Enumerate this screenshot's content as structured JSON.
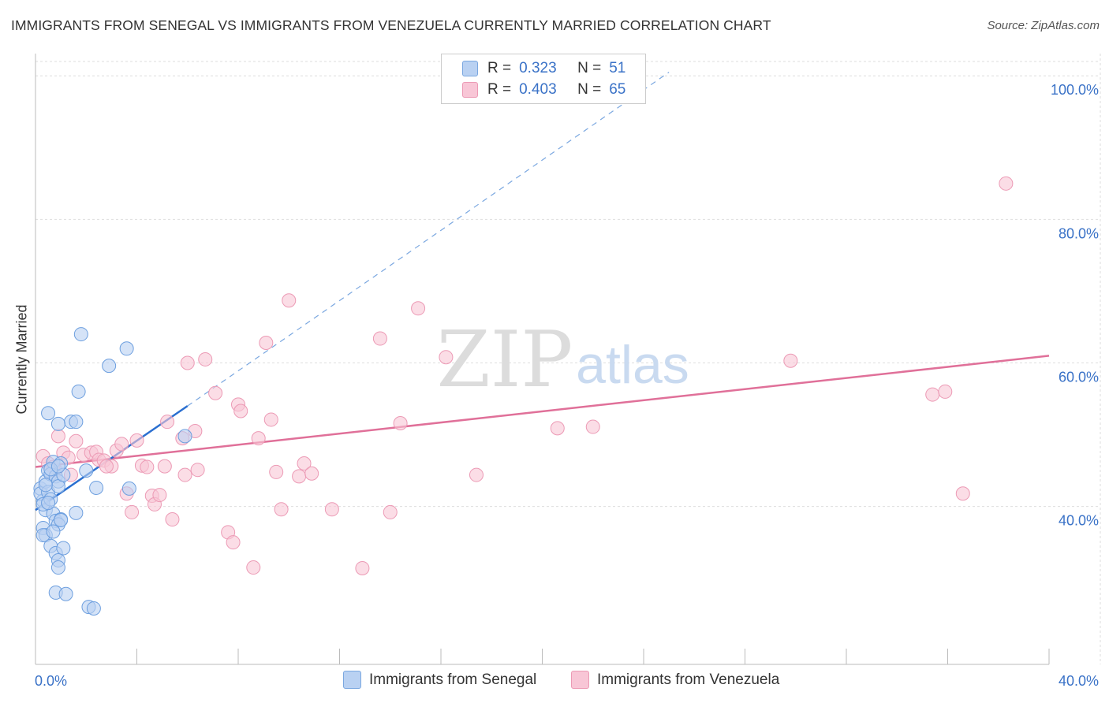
{
  "header": {
    "title": "IMMIGRANTS FROM SENEGAL VS IMMIGRANTS FROM VENEZUELA CURRENTLY MARRIED CORRELATION CHART",
    "source": "Source: ZipAtlas.com"
  },
  "legend": {
    "r_label": "R =",
    "n_label": "N =",
    "senegal": {
      "r": "0.323",
      "n": "51"
    },
    "venezuela": {
      "r": "0.403",
      "n": "65"
    }
  },
  "bottom_legend": {
    "senegal": "Immigrants from Senegal",
    "venezuela": "Immigrants from Venezuela"
  },
  "watermark": {
    "zip": "ZIP",
    "atlas": "atlas"
  },
  "colors": {
    "senegal_fill": "#b9d1f2",
    "senegal_stroke": "#6d9fdf",
    "senegal_line": "#2a6fd0",
    "venezuela_fill": "#f8c6d6",
    "venezuela_stroke": "#ec9ab5",
    "venezuela_line": "#e07099",
    "tick_label": "#3a72c7"
  },
  "chart_data": {
    "type": "scatter",
    "title": "IMMIGRANTS FROM SENEGAL VS IMMIGRANTS FROM VENEZUELA CURRENTLY MARRIED CORRELATION CHART",
    "xlabel": "",
    "ylabel": "Currently Married",
    "xlim": [
      0,
      40
    ],
    "ylim": [
      18,
      102
    ],
    "x_tick_labels": [
      "0.0%",
      "40.0%"
    ],
    "y_ticks": [
      {
        "value": 40,
        "label": "40.0%"
      },
      {
        "value": 60,
        "label": "60.0%"
      },
      {
        "value": 80,
        "label": "80.0%"
      },
      {
        "value": 100,
        "label": "100.0%"
      }
    ],
    "series": [
      {
        "name": "Immigrants from Senegal",
        "r": 0.323,
        "n": 51,
        "points": [
          [
            0.2,
            42.5
          ],
          [
            0.3,
            40.8
          ],
          [
            0.4,
            43.5
          ],
          [
            0.2,
            41.8
          ],
          [
            0.5,
            45
          ],
          [
            0.6,
            44.5
          ],
          [
            0.7,
            46.2
          ],
          [
            0.8,
            44.2
          ],
          [
            0.9,
            43.5
          ],
          [
            1.0,
            46
          ],
          [
            0.4,
            39.5
          ],
          [
            0.7,
            39
          ],
          [
            0.8,
            38
          ],
          [
            1.0,
            38.2
          ],
          [
            0.9,
            37.5
          ],
          [
            0.3,
            37
          ],
          [
            0.4,
            36
          ],
          [
            0.3,
            36
          ],
          [
            0.7,
            36.5
          ],
          [
            0.6,
            34.5
          ],
          [
            0.8,
            33.5
          ],
          [
            0.9,
            32.5
          ],
          [
            0.9,
            31.5
          ],
          [
            1.1,
            34.2
          ],
          [
            0.8,
            28
          ],
          [
            1.2,
            27.8
          ],
          [
            2.1,
            26
          ],
          [
            2.3,
            25.8
          ],
          [
            0.5,
            53
          ],
          [
            1.7,
            56
          ],
          [
            1.8,
            64
          ],
          [
            2.9,
            59.6
          ],
          [
            3.6,
            62
          ],
          [
            1.4,
            51.8
          ],
          [
            0.9,
            51.5
          ],
          [
            1.6,
            51.8
          ],
          [
            2.0,
            45
          ],
          [
            2.4,
            42.6
          ],
          [
            3.7,
            42.5
          ],
          [
            5.9,
            49.8
          ],
          [
            1.6,
            39.1
          ],
          [
            0.3,
            40.3
          ],
          [
            0.5,
            42
          ],
          [
            0.9,
            42.8
          ],
          [
            0.6,
            41
          ],
          [
            0.4,
            43
          ],
          [
            1.0,
            38.1
          ],
          [
            1.1,
            44.4
          ],
          [
            0.6,
            45.2
          ],
          [
            0.9,
            45.6
          ],
          [
            0.5,
            40.5
          ]
        ],
        "trend": {
          "x0": 0,
          "y0": 39.5,
          "x1": 6.0,
          "y1": 54,
          "dash_x1": 25.0,
          "dash_y1": 100.5
        }
      },
      {
        "name": "Immigrants from Venezuela",
        "r": 0.403,
        "n": 65,
        "points": [
          [
            0.3,
            47
          ],
          [
            0.5,
            46
          ],
          [
            0.8,
            45
          ],
          [
            0.9,
            49.8
          ],
          [
            1.1,
            47.5
          ],
          [
            1.3,
            46.8
          ],
          [
            1.6,
            49.1
          ],
          [
            1.9,
            47.2
          ],
          [
            2.2,
            47.5
          ],
          [
            2.4,
            47.6
          ],
          [
            2.5,
            46.5
          ],
          [
            2.7,
            46.4
          ],
          [
            3.0,
            45.6
          ],
          [
            3.2,
            47.8
          ],
          [
            3.4,
            48.7
          ],
          [
            4.0,
            49.2
          ],
          [
            4.2,
            45.7
          ],
          [
            4.4,
            45.5
          ],
          [
            3.6,
            41.8
          ],
          [
            3.8,
            39.2
          ],
          [
            4.6,
            41.5
          ],
          [
            4.7,
            40.3
          ],
          [
            4.9,
            41.6
          ],
          [
            5.1,
            45.6
          ],
          [
            5.4,
            38.2
          ],
          [
            5.2,
            51.8
          ],
          [
            5.8,
            49.5
          ],
          [
            5.9,
            44.4
          ],
          [
            6.3,
            50.5
          ],
          [
            6.4,
            45.1
          ],
          [
            6.0,
            60
          ],
          [
            6.7,
            60.5
          ],
          [
            7.1,
            55.8
          ],
          [
            7.6,
            36.4
          ],
          [
            7.8,
            35
          ],
          [
            8.0,
            54.2
          ],
          [
            8.1,
            53.3
          ],
          [
            8.8,
            49.5
          ],
          [
            9.1,
            62.8
          ],
          [
            9.3,
            52.1
          ],
          [
            9.5,
            44.8
          ],
          [
            9.7,
            39.6
          ],
          [
            10.0,
            68.7
          ],
          [
            10.4,
            44.2
          ],
          [
            10.6,
            46
          ],
          [
            10.9,
            44.6
          ],
          [
            11.7,
            39.6
          ],
          [
            12.9,
            31.4
          ],
          [
            13.6,
            63.4
          ],
          [
            14.0,
            39.2
          ],
          [
            14.4,
            51.6
          ],
          [
            15.1,
            67.6
          ],
          [
            16.2,
            60.8
          ],
          [
            17.4,
            44.4
          ],
          [
            20.6,
            50.9
          ],
          [
            22.0,
            51.1
          ],
          [
            29.8,
            60.3
          ],
          [
            35.4,
            55.6
          ],
          [
            35.9,
            56
          ],
          [
            36.6,
            41.8
          ],
          [
            38.3,
            85
          ],
          [
            8.6,
            31.5
          ],
          [
            1.4,
            44.4
          ],
          [
            0.7,
            45.5
          ],
          [
            2.8,
            45.6
          ]
        ],
        "trend": {
          "x0": 0,
          "y0": 45.5,
          "x1": 40,
          "y1": 61
        }
      }
    ]
  }
}
